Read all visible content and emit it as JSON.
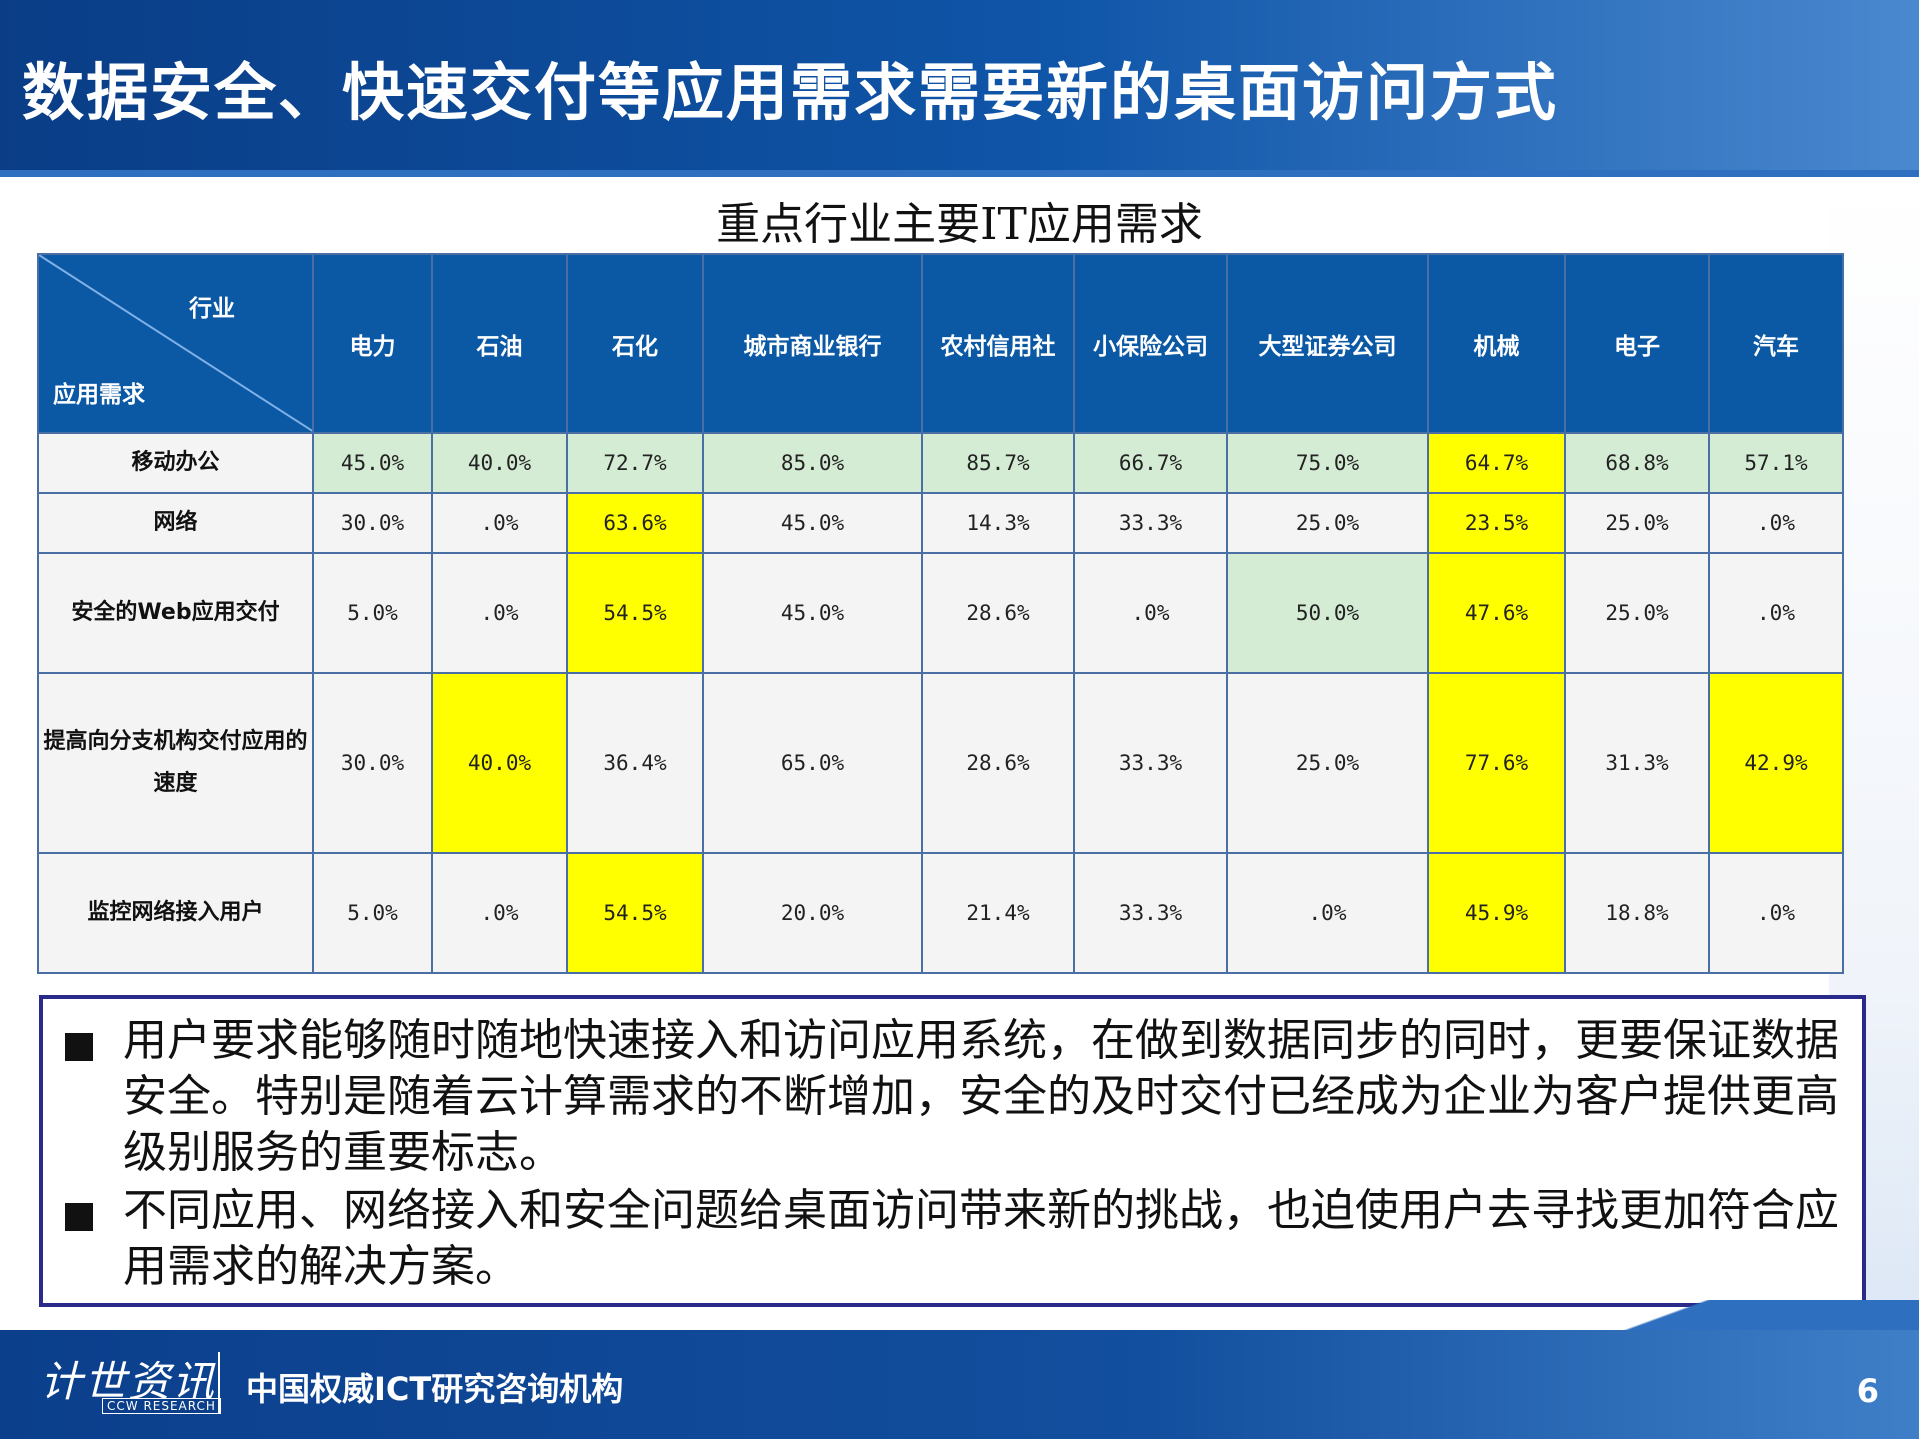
{
  "slide": {
    "title": "数据安全、快速交付等应用需求需要新的桌面访问方式"
  },
  "table": {
    "title": "重点行业主要IT应用需求",
    "corner_top": "行业",
    "corner_bottom": "应用需求",
    "columns": [
      "电力",
      "石油",
      "石化",
      "城市商业银行",
      "农村信用社",
      "小保险公司",
      "大型证券公司",
      "机械",
      "电子",
      "汽车"
    ],
    "rows": [
      {
        "label": "移动办公",
        "values": [
          "45.0%",
          "40.0%",
          "72.7%",
          "85.0%",
          "85.7%",
          "66.7%",
          "75.0%",
          "64.7%",
          "68.8%",
          "57.1%"
        ]
      },
      {
        "label": "网络",
        "values": [
          "30.0%",
          ".0%",
          "63.6%",
          "45.0%",
          "14.3%",
          "33.3%",
          "25.0%",
          "23.5%",
          "25.0%",
          ".0%"
        ]
      },
      {
        "label": "安全的Web应用交付",
        "values": [
          "5.0%",
          ".0%",
          "54.5%",
          "45.0%",
          "28.6%",
          ".0%",
          "50.0%",
          "47.6%",
          "25.0%",
          ".0%"
        ]
      },
      {
        "label": "提高向分支机构交付应用的速度",
        "values": [
          "30.0%",
          "40.0%",
          "36.4%",
          "65.0%",
          "28.6%",
          "33.3%",
          "25.0%",
          "77.6%",
          "31.3%",
          "42.9%"
        ]
      },
      {
        "label": "监控网络接入用户",
        "values": [
          "5.0%",
          ".0%",
          "54.5%",
          "20.0%",
          "21.4%",
          "33.3%",
          ".0%",
          "45.9%",
          "18.8%",
          ".0%"
        ]
      }
    ],
    "highlight_colors": {
      "green": "#d4ecd4",
      "yellow": "#ffff00"
    }
  },
  "bullets": [
    "用户要求能够随时随地快速接入和访问应用系统，在做到数据同步的同时，更要保证数据安全。特别是随着云计算需求的不断增加，安全的及时交付已经成为企业为客户提供更高级别服务的重要标志。",
    "不同应用、网络接入和安全问题给桌面访问带来新的挑战，也迫使用户去寻找更加符合应用需求的解决方案。"
  ],
  "footer": {
    "logo_text": "计世资讯",
    "logo_sub": "CCW RESEARCH",
    "org": "中国权威ICT研究咨询机构",
    "page_number": "6"
  }
}
